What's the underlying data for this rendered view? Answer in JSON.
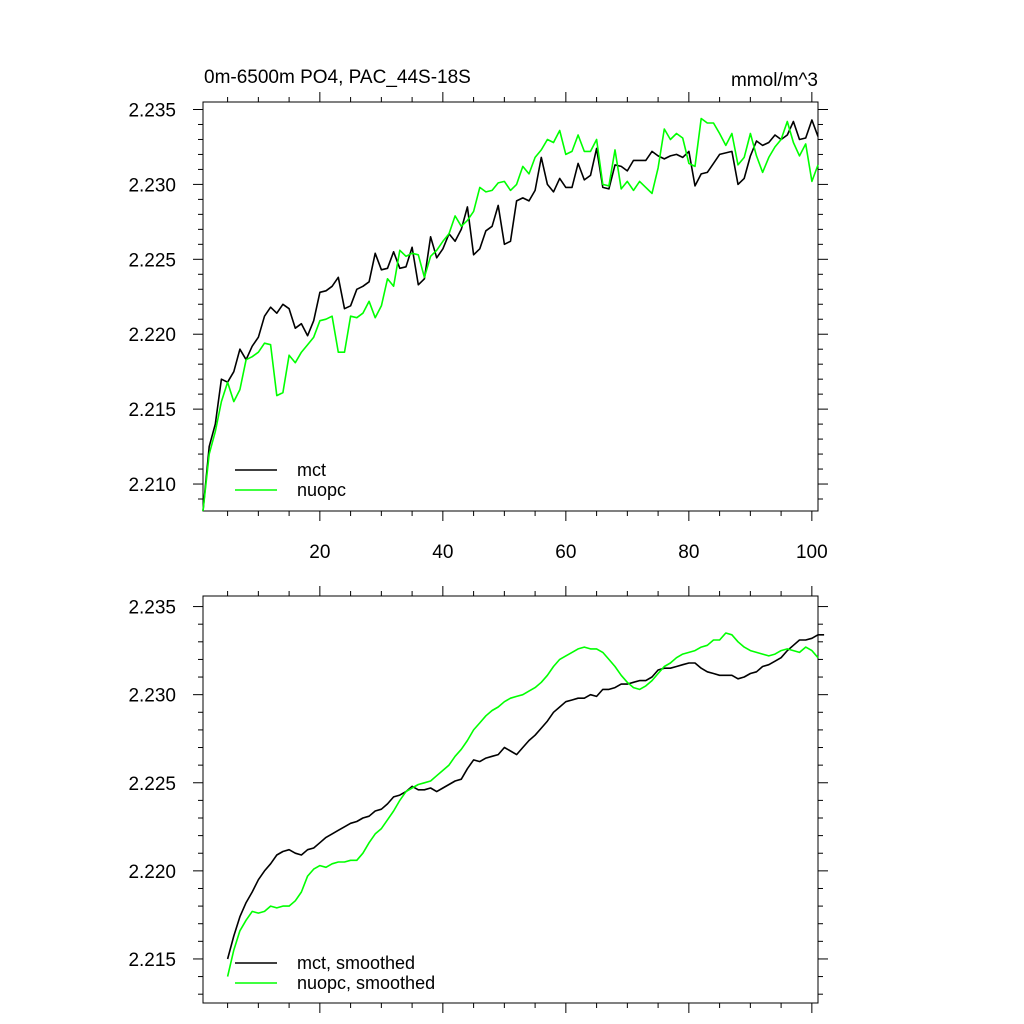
{
  "chart_data": [
    {
      "type": "line",
      "title": "0m-6500m PO4, PAC_44S-18S",
      "units_label": "mmol/m^3",
      "xlim": [
        1,
        101
      ],
      "ylim": [
        2.2082,
        2.2355
      ],
      "xticks": [
        20,
        40,
        60,
        80,
        100
      ],
      "xtick_labels": [
        "20",
        "40",
        "60",
        "80",
        "100"
      ],
      "yticks": [
        2.21,
        2.215,
        2.22,
        2.225,
        2.23,
        2.235
      ],
      "ytick_labels": [
        "2.210",
        "2.215",
        "2.220",
        "2.225",
        "2.230",
        "2.235"
      ],
      "legend_position": "bottom-left",
      "series": [
        {
          "name": "mct",
          "color": "#000000",
          "x_start": 1,
          "values": [
            2.2082,
            2.2125,
            2.214,
            2.217,
            2.2168,
            2.2175,
            2.219,
            2.2183,
            2.2192,
            2.2198,
            2.2212,
            2.2218,
            2.2214,
            2.222,
            2.2217,
            2.2204,
            2.2207,
            2.2199,
            2.2209,
            2.2228,
            2.2229,
            2.2232,
            2.2238,
            2.2217,
            2.2219,
            2.223,
            2.2232,
            2.2235,
            2.2254,
            2.2243,
            2.2244,
            2.2255,
            2.2244,
            2.2245,
            2.2258,
            2.2233,
            2.2237,
            2.2265,
            2.2251,
            2.2257,
            2.2267,
            2.2262,
            2.227,
            2.2285,
            2.2253,
            2.2257,
            2.2269,
            2.2272,
            2.2286,
            2.226,
            2.2262,
            2.2289,
            2.2291,
            2.2289,
            2.2296,
            2.2318,
            2.23,
            2.2295,
            2.2304,
            2.2298,
            2.2298,
            2.2314,
            2.2303,
            2.2306,
            2.2324,
            2.2298,
            2.2297,
            2.2313,
            2.2312,
            2.2309,
            2.2316,
            2.2316,
            2.2316,
            2.2322,
            2.2319,
            2.2317,
            2.2319,
            2.232,
            2.2318,
            2.2322,
            2.2299,
            2.2307,
            2.2308,
            2.2314,
            2.232,
            2.2321,
            2.2322,
            2.23,
            2.2304,
            2.2319,
            2.2329,
            2.2326,
            2.2328,
            2.2333,
            2.233,
            2.2333,
            2.2342,
            2.233,
            2.2331,
            2.2343,
            2.2332
          ]
        },
        {
          "name": "nuopc",
          "color": "#00ff00",
          "x_start": 1,
          "values": [
            2.2082,
            2.212,
            2.2135,
            2.2155,
            2.2168,
            2.2155,
            2.2163,
            2.2183,
            2.2185,
            2.2188,
            2.2194,
            2.2193,
            2.2159,
            2.2161,
            2.2186,
            2.2181,
            2.2188,
            2.2193,
            2.2198,
            2.2209,
            2.221,
            2.2212,
            2.2188,
            2.2188,
            2.2212,
            2.2211,
            2.2214,
            2.2222,
            2.2211,
            2.2219,
            2.2237,
            2.2232,
            2.2256,
            2.2252,
            2.2254,
            2.2253,
            2.2238,
            2.2252,
            2.2256,
            2.2262,
            2.2267,
            2.2279,
            2.2272,
            2.2276,
            2.2282,
            2.2298,
            2.2295,
            2.2296,
            2.2301,
            2.2302,
            2.2296,
            2.23,
            2.2312,
            2.2307,
            2.2318,
            2.2323,
            2.233,
            2.2328,
            2.2336,
            2.232,
            2.2322,
            2.2333,
            2.2322,
            2.2322,
            2.233,
            2.23,
            2.2299,
            2.2323,
            2.2297,
            2.2302,
            2.2296,
            2.2302,
            2.2298,
            2.2294,
            2.2311,
            2.2337,
            2.233,
            2.2334,
            2.2331,
            2.2314,
            2.2312,
            2.2344,
            2.2341,
            2.2341,
            2.2334,
            2.2326,
            2.2334,
            2.2313,
            2.2318,
            2.2334,
            2.2319,
            2.2308,
            2.2318,
            2.2325,
            2.233,
            2.2342,
            2.2328,
            2.2319,
            2.2327,
            2.2302,
            2.2313
          ]
        }
      ]
    },
    {
      "type": "line",
      "title": "",
      "xlim": [
        1,
        101
      ],
      "ylim": [
        2.2125,
        2.2356
      ],
      "xticks": [
        20,
        40,
        60,
        80,
        100
      ],
      "xtick_labels": [],
      "yticks": [
        2.215,
        2.22,
        2.225,
        2.23,
        2.235
      ],
      "ytick_labels": [
        "2.215",
        "2.220",
        "2.225",
        "2.230",
        "2.235"
      ],
      "legend_position": "bottom-left",
      "series": [
        {
          "name": "mct, smoothed",
          "color": "#000000",
          "x_start": 5,
          "values": [
            2.215,
            2.2163,
            2.2174,
            2.2182,
            2.2188,
            2.2195,
            2.22,
            2.2204,
            2.2209,
            2.2211,
            2.2212,
            2.221,
            2.2209,
            2.2212,
            2.2213,
            2.2216,
            2.2219,
            2.2221,
            2.2223,
            2.2225,
            2.2227,
            2.2228,
            2.223,
            2.2231,
            2.2234,
            2.2235,
            2.2238,
            2.2242,
            2.2243,
            2.2245,
            2.2248,
            2.2246,
            2.2246,
            2.2247,
            2.2245,
            2.2247,
            2.2249,
            2.2251,
            2.2252,
            2.2258,
            2.2263,
            2.2262,
            2.2264,
            2.2265,
            2.2266,
            2.227,
            2.2268,
            2.2266,
            2.227,
            2.2274,
            2.2277,
            2.2281,
            2.2285,
            2.229,
            2.2293,
            2.2296,
            2.2297,
            2.2298,
            2.2298,
            2.23,
            2.2299,
            2.2303,
            2.2303,
            2.2304,
            2.2306,
            2.2306,
            2.2307,
            2.2308,
            2.2308,
            2.231,
            2.2314,
            2.2315,
            2.2315,
            2.2316,
            2.2317,
            2.2318,
            2.2318,
            2.2315,
            2.2313,
            2.2312,
            2.2311,
            2.2311,
            2.2311,
            2.2309,
            2.231,
            2.2312,
            2.2313,
            2.2316,
            2.2317,
            2.2319,
            2.2321,
            2.2325,
            2.2328,
            2.2331,
            2.2331,
            2.2332,
            2.2334,
            2.2334
          ]
        },
        {
          "name": "nuopc, smoothed",
          "color": "#00ff00",
          "x_start": 5,
          "values": [
            2.214,
            2.2155,
            2.2166,
            2.2172,
            2.2177,
            2.2176,
            2.2177,
            2.218,
            2.2179,
            2.218,
            2.218,
            2.2183,
            2.2188,
            2.2197,
            2.2201,
            2.2203,
            2.2202,
            2.2204,
            2.2205,
            2.2205,
            2.2206,
            2.2206,
            2.221,
            2.2216,
            2.2221,
            2.2224,
            2.2229,
            2.2234,
            2.224,
            2.2245,
            2.2247,
            2.2249,
            2.225,
            2.2251,
            2.2254,
            2.2257,
            2.226,
            2.2265,
            2.2269,
            2.2274,
            2.228,
            2.2284,
            2.2288,
            2.2291,
            2.2293,
            2.2296,
            2.2298,
            2.2299,
            2.23,
            2.2302,
            2.2304,
            2.2307,
            2.2311,
            2.2316,
            2.232,
            2.2322,
            2.2324,
            2.2326,
            2.2327,
            2.2326,
            2.2326,
            2.2324,
            2.232,
            2.2316,
            2.2311,
            2.2307,
            2.2304,
            2.2303,
            2.2305,
            2.2308,
            2.2312,
            2.2316,
            2.2318,
            2.2321,
            2.2323,
            2.2324,
            2.2325,
            2.2327,
            2.2328,
            2.2331,
            2.2331,
            2.2335,
            2.2334,
            2.233,
            2.2327,
            2.2325,
            2.2324,
            2.2323,
            2.2322,
            2.2323,
            2.2325,
            2.2326,
            2.2325,
            2.2324,
            2.2327,
            2.2325,
            2.2321
          ]
        }
      ]
    }
  ]
}
